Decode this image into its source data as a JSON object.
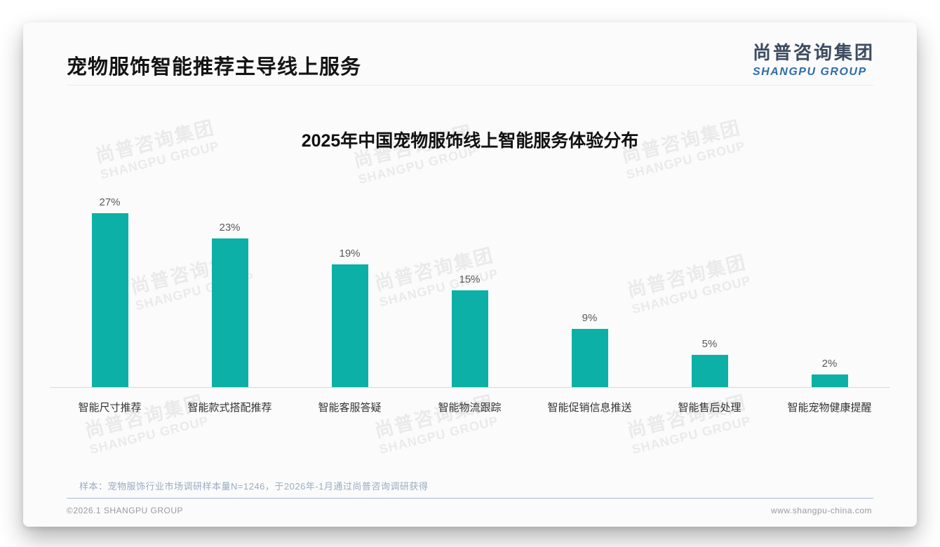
{
  "page": {
    "title": "宠物服饰智能推荐主导线上服务",
    "logo": {
      "cn": "尚普咨询集团",
      "en": "SHANGPU GROUP"
    },
    "note": "样本：宠物服饰行业市场调研样本量N=1246，于2026年-1月通过尚普咨询调研获得",
    "footer_left": "©2026.1 SHANGPU GROUP",
    "footer_right": "www.shangpu-china.com",
    "watermark": {
      "line1": "尚普咨询集团",
      "line2": "SHANGPU GROUP"
    }
  },
  "chart_data": {
    "type": "bar",
    "title": "2025年中国宠物服饰线上智能服务体验分布",
    "categories": [
      "智能尺寸推荐",
      "智能款式搭配推荐",
      "智能客服答疑",
      "智能物流跟踪",
      "智能促销信息推送",
      "智能售后处理",
      "智能宠物健康提醒"
    ],
    "values": [
      27,
      23,
      19,
      15,
      9,
      5,
      2
    ],
    "value_labels": [
      "27%",
      "23%",
      "19%",
      "15%",
      "9%",
      "5%",
      "2%"
    ],
    "xlabel": "",
    "ylabel": "",
    "ylim": [
      0,
      30
    ],
    "grid": false,
    "legend": false,
    "bar_color": "#0CB0A6",
    "axis_color": "#d9d9d9"
  },
  "colors": {
    "accent": "#0CB0A6",
    "logo_dark": "#3D4C60",
    "logo_blue": "#2F6CA8",
    "note_text": "#9AACC2",
    "value_text": "#595959",
    "category_text": "#333333"
  }
}
